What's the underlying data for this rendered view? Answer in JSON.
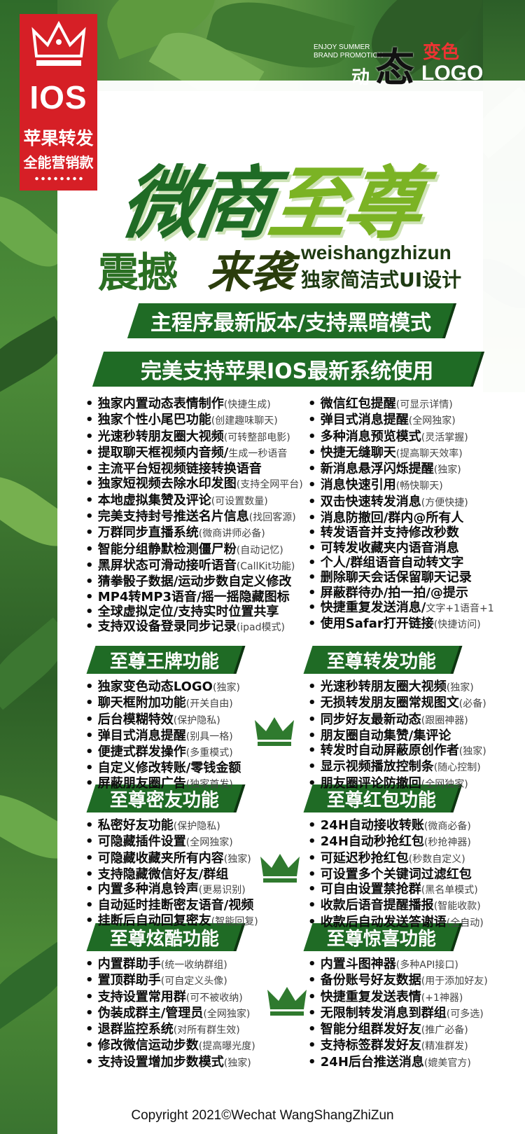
{
  "badge": {
    "ios": "IOS",
    "line1": "苹果转发",
    "line2": "全能营销款"
  },
  "logo": {
    "en1": "ENJOY SUMMER",
    "en2": "BRAND PROMOTION",
    "dong": "动",
    "tai": "态",
    "bian": "变色",
    "logo": "LOGO"
  },
  "title": {
    "c1": "微",
    "c2": "商",
    "c3": "至",
    "c4": "尊"
  },
  "subtitle": {
    "zh1": "震撼",
    "zh2": "来袭",
    "en": "weishangzhizun",
    "ui": "独家简洁式UI设计"
  },
  "banners": {
    "b1": "主程序最新版本/支持黑暗模式",
    "b2": "完美支持苹果IOS最新系统使用"
  },
  "features_left": [
    {
      "t": "独家内置动态表情制作",
      "n": "(快捷生成)"
    },
    {
      "t": "独家个性小尾巴功能",
      "n": "(创建趣味聊天)"
    },
    {
      "t": "光速秒转朋友圈大视频",
      "n": "(可转整部电影)"
    },
    {
      "t": "提取聊天框视频内音频/",
      "n": "生成一秒语音"
    },
    {
      "t": "主流平台短视频链接转换语音",
      "n": ""
    },
    {
      "t": "独家短视频去除水印发图",
      "n": "(支持全网平台)"
    },
    {
      "t": "本地虚拟集赞及评论",
      "n": "(可设置数量)"
    },
    {
      "t": "完美支持封号推送名片信息",
      "n": "(找回客源)"
    },
    {
      "t": "万群同步直播系统",
      "n": "(微商讲师必备)"
    },
    {
      "t": "智能分组静默检测僵尸粉",
      "n": "(自动记忆)"
    },
    {
      "t": "黑屏状态可滑动接听语音",
      "n": "(CallKit功能)"
    },
    {
      "t": "猜拳骰子数据/运动步数自定义修改",
      "n": ""
    },
    {
      "t": "MP4转MP3语音/摇一摇隐藏图标",
      "n": ""
    },
    {
      "t": "全球虚拟定位/支持实时位置共享",
      "n": ""
    },
    {
      "t": "支持双设备登录同步记录",
      "n": "(ipad模式)"
    }
  ],
  "features_right": [
    {
      "t": "微信红包提醒",
      "n": "(可显示详情)"
    },
    {
      "t": "弹目式消息提醒",
      "n": "(全网独家)"
    },
    {
      "t": "多种消息预览模式",
      "n": "(灵活掌握)"
    },
    {
      "t": "快捷无缝聊天",
      "n": "(提高聊天效率)"
    },
    {
      "t": "新消息悬浮闪烁提醒",
      "n": "(独家)"
    },
    {
      "t": "消息快速引用",
      "n": "(畅快聊天)"
    },
    {
      "t": "双击快速转发消息",
      "n": "(方便快捷)"
    },
    {
      "t": "消息防撤回/群内@所有人",
      "n": ""
    },
    {
      "t": "转发语音并支持修改秒数",
      "n": ""
    },
    {
      "t": "可转发收藏夹内语音消息",
      "n": ""
    },
    {
      "t": "个人/群组语音自动转文字",
      "n": ""
    },
    {
      "t": "删除聊天会话保留聊天记录",
      "n": ""
    },
    {
      "t": "屏蔽群待办/拍一拍/@提示",
      "n": ""
    },
    {
      "t": "快捷重复发送消息/",
      "n": "文字+1语音+1"
    },
    {
      "t": "使用Safar打开链接",
      "n": "(快捷访问)"
    }
  ],
  "sections": [
    {
      "title": "至尊王牌功能",
      "items": [
        {
          "t": "独家变色动态LOGO",
          "n": "(独家)"
        },
        {
          "t": "聊天框附加功能",
          "n": "(开关自由)"
        },
        {
          "t": "后台模糊特效",
          "n": "(保护隐私)"
        },
        {
          "t": "弹目式消息提醒",
          "n": "(别具一格)"
        },
        {
          "t": "便捷式群发操作",
          "n": "(多重模式)"
        },
        {
          "t": "自定义修改转账/零钱金额",
          "n": ""
        },
        {
          "t": "屏蔽朋友圈广告",
          "n": "(独家首发)"
        }
      ]
    },
    {
      "title": "至尊转发功能",
      "items": [
        {
          "t": "光速秒转朋友圈大视频",
          "n": "(独家)"
        },
        {
          "t": "无损转发朋友圈常规图文",
          "n": "(必备)"
        },
        {
          "t": "同步好友最新动态",
          "n": "(跟圈神器)"
        },
        {
          "t": "朋友圈自动集赞/集评论",
          "n": ""
        },
        {
          "t": "转发时自动屏蔽原创作者",
          "n": "(独家)"
        },
        {
          "t": "显示视频播放控制条",
          "n": "(随心控制)"
        },
        {
          "t": "朋友圈评论防撤回",
          "n": "(全网独家)"
        }
      ]
    },
    {
      "title": "至尊密友功能",
      "items": [
        {
          "t": "私密好友功能",
          "n": "(保护隐私)"
        },
        {
          "t": "可隐藏插件设置",
          "n": "(全网独家)"
        },
        {
          "t": "可隐藏收藏夹所有内容",
          "n": "(独家)"
        },
        {
          "t": "支持隐藏微信好友/群组",
          "n": ""
        },
        {
          "t": "内置多种消息铃声",
          "n": "(更易识别)"
        },
        {
          "t": "自动延时挂断密友语音/视频",
          "n": ""
        },
        {
          "t": "挂断后自动回复密友",
          "n": "(智能回复)"
        }
      ]
    },
    {
      "title": "至尊红包功能",
      "items": [
        {
          "t": "24H自动接收转账",
          "n": "(微商必备)"
        },
        {
          "t": "24H自动秒抢红包",
          "n": "(秒抢神器)"
        },
        {
          "t": "可延迟秒抢红包",
          "n": "(秒数自定义)"
        },
        {
          "t": "可设置多个关键词过滤红包",
          "n": ""
        },
        {
          "t": "可自由设置禁抢群",
          "n": "(黑名单模式)"
        },
        {
          "t": "收款后语音提醒播报",
          "n": "(智能收款)"
        },
        {
          "t": "收款后自动发送答谢语",
          "n": "(全自动)"
        }
      ]
    },
    {
      "title": "至尊炫酷功能",
      "items": [
        {
          "t": "内置群助手",
          "n": "(统一收纳群组)"
        },
        {
          "t": "置顶群助手",
          "n": "(可自定义头像)"
        },
        {
          "t": "支持设置常用群",
          "n": "(可不被收纳)"
        },
        {
          "t": "伪装成群主/管理员",
          "n": "(全网独家)"
        },
        {
          "t": "退群监控系统",
          "n": "(对所有群生效)"
        },
        {
          "t": "修改微信运动步数",
          "n": "(提高曝光度)"
        },
        {
          "t": "支持设置增加步数模式",
          "n": "(独家)"
        }
      ]
    },
    {
      "title": "至尊惊喜功能",
      "items": [
        {
          "t": "内置斗图神器",
          "n": "(多种API接口)"
        },
        {
          "t": "备份账号好友数据",
          "n": "(用于添加好友)"
        },
        {
          "t": "快捷重复发送表情",
          "n": "(+1神器)"
        },
        {
          "t": "无限制转发消息到群组",
          "n": "(可多选)"
        },
        {
          "t": "智能分组群发好友",
          "n": "(推广必备)"
        },
        {
          "t": "支持标签群发好友",
          "n": "(精准群发)"
        },
        {
          "t": "24H后台推送消息",
          "n": "(媲美官方)"
        }
      ]
    }
  ],
  "copyright": "Copyright 2021©Wechat WangShangZhiZun",
  "colors": {
    "green": "#1f6b25",
    "red": "#d61f26",
    "lime": "#7bb324"
  }
}
